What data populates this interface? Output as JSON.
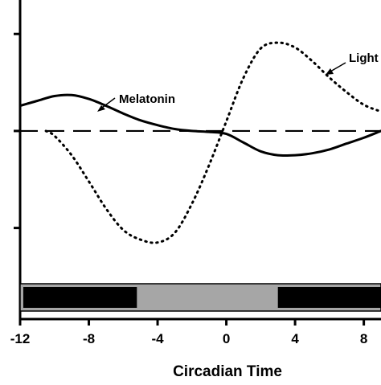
{
  "chart_data": {
    "type": "line",
    "title": "",
    "xlabel": "Circadian Time",
    "ylabel": "",
    "xlim": [
      -12,
      9
    ],
    "ylim": [
      -1.55,
      1.35
    ],
    "x_ticks": [
      -12,
      -8,
      -4,
      0,
      4,
      8
    ],
    "x_tick_labels": [
      "-12",
      "-8",
      "-4",
      "0",
      "4",
      "8"
    ],
    "y_ticks": [
      -1,
      0,
      1
    ],
    "y_tick_labels_visible": false,
    "grid": false,
    "reference_line": {
      "y": 0,
      "style": "dashed"
    },
    "series": [
      {
        "name": "Melatonin",
        "line_style": "solid",
        "color": "#000000",
        "x": [
          -12,
          -11,
          -10,
          -9,
          -8,
          -7,
          -6,
          -5,
          -4,
          -3,
          -2,
          -1,
          0,
          1,
          2,
          3,
          4,
          5,
          6,
          7,
          8,
          9
        ],
        "y": [
          0.26,
          0.31,
          0.36,
          0.37,
          0.33,
          0.26,
          0.18,
          0.11,
          0.06,
          0.02,
          0.0,
          -0.01,
          -0.03,
          -0.12,
          -0.21,
          -0.25,
          -0.25,
          -0.23,
          -0.19,
          -0.13,
          -0.07,
          0.0
        ]
      },
      {
        "name": "Light",
        "line_style": "dotted",
        "color": "#000000",
        "x": [
          -10.5,
          -10,
          -9,
          -8,
          -7,
          -6,
          -5,
          -4,
          -3,
          -2,
          -1,
          0,
          1,
          2,
          3,
          4,
          5,
          6,
          7,
          8,
          9
        ],
        "y": [
          0.0,
          -0.05,
          -0.25,
          -0.52,
          -0.8,
          -1.02,
          -1.12,
          -1.15,
          -1.05,
          -0.75,
          -0.35,
          0.1,
          0.55,
          0.85,
          0.91,
          0.86,
          0.72,
          0.55,
          0.4,
          0.27,
          0.2
        ]
      }
    ],
    "annotations": [
      {
        "text": "Melatonin",
        "points_to_x": -9.3,
        "points_to_y": 0.37
      },
      {
        "text": "Light",
        "points_to_x": 5.6,
        "points_to_y": 0.78
      }
    ],
    "light_dark_bar": [
      {
        "from": -12,
        "to": -5.2,
        "state": "dark",
        "color": "#000000"
      },
      {
        "from": -5.2,
        "to": 3,
        "state": "light",
        "color": "#a6a6a6"
      },
      {
        "from": 3,
        "to": 9,
        "state": "dark",
        "color": "#000000"
      }
    ]
  }
}
